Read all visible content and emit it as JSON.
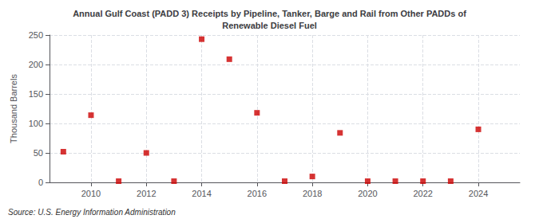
{
  "chart_data": {
    "type": "scatter",
    "title": "Annual Gulf Coast (PADD 3) Receipts by Pipeline, Tanker, Barge and Rail from Other PADDs of\nRenewable Diesel Fuel",
    "ylabel": "Thousand Barrels",
    "annotations": [
      "Source: U.S. Energy Information Administration"
    ],
    "x": [
      2009,
      2010,
      2011,
      2012,
      2013,
      2014,
      2015,
      2016,
      2017,
      2018,
      2019,
      2020,
      2021,
      2022,
      2023,
      2024
    ],
    "values": [
      52,
      114,
      2,
      50,
      2,
      243,
      209,
      118,
      2,
      10,
      84,
      2,
      2,
      2,
      2,
      90
    ],
    "color": "#cc0000",
    "marker": "square",
    "xlim": [
      2008.5,
      2025.5
    ],
    "xticks": [
      2010,
      2012,
      2014,
      2016,
      2018,
      2020,
      2022,
      2024
    ],
    "ylim": [
      0,
      250
    ],
    "yticks": [
      0,
      50,
      100,
      150,
      200,
      250
    ],
    "grid": true
  }
}
